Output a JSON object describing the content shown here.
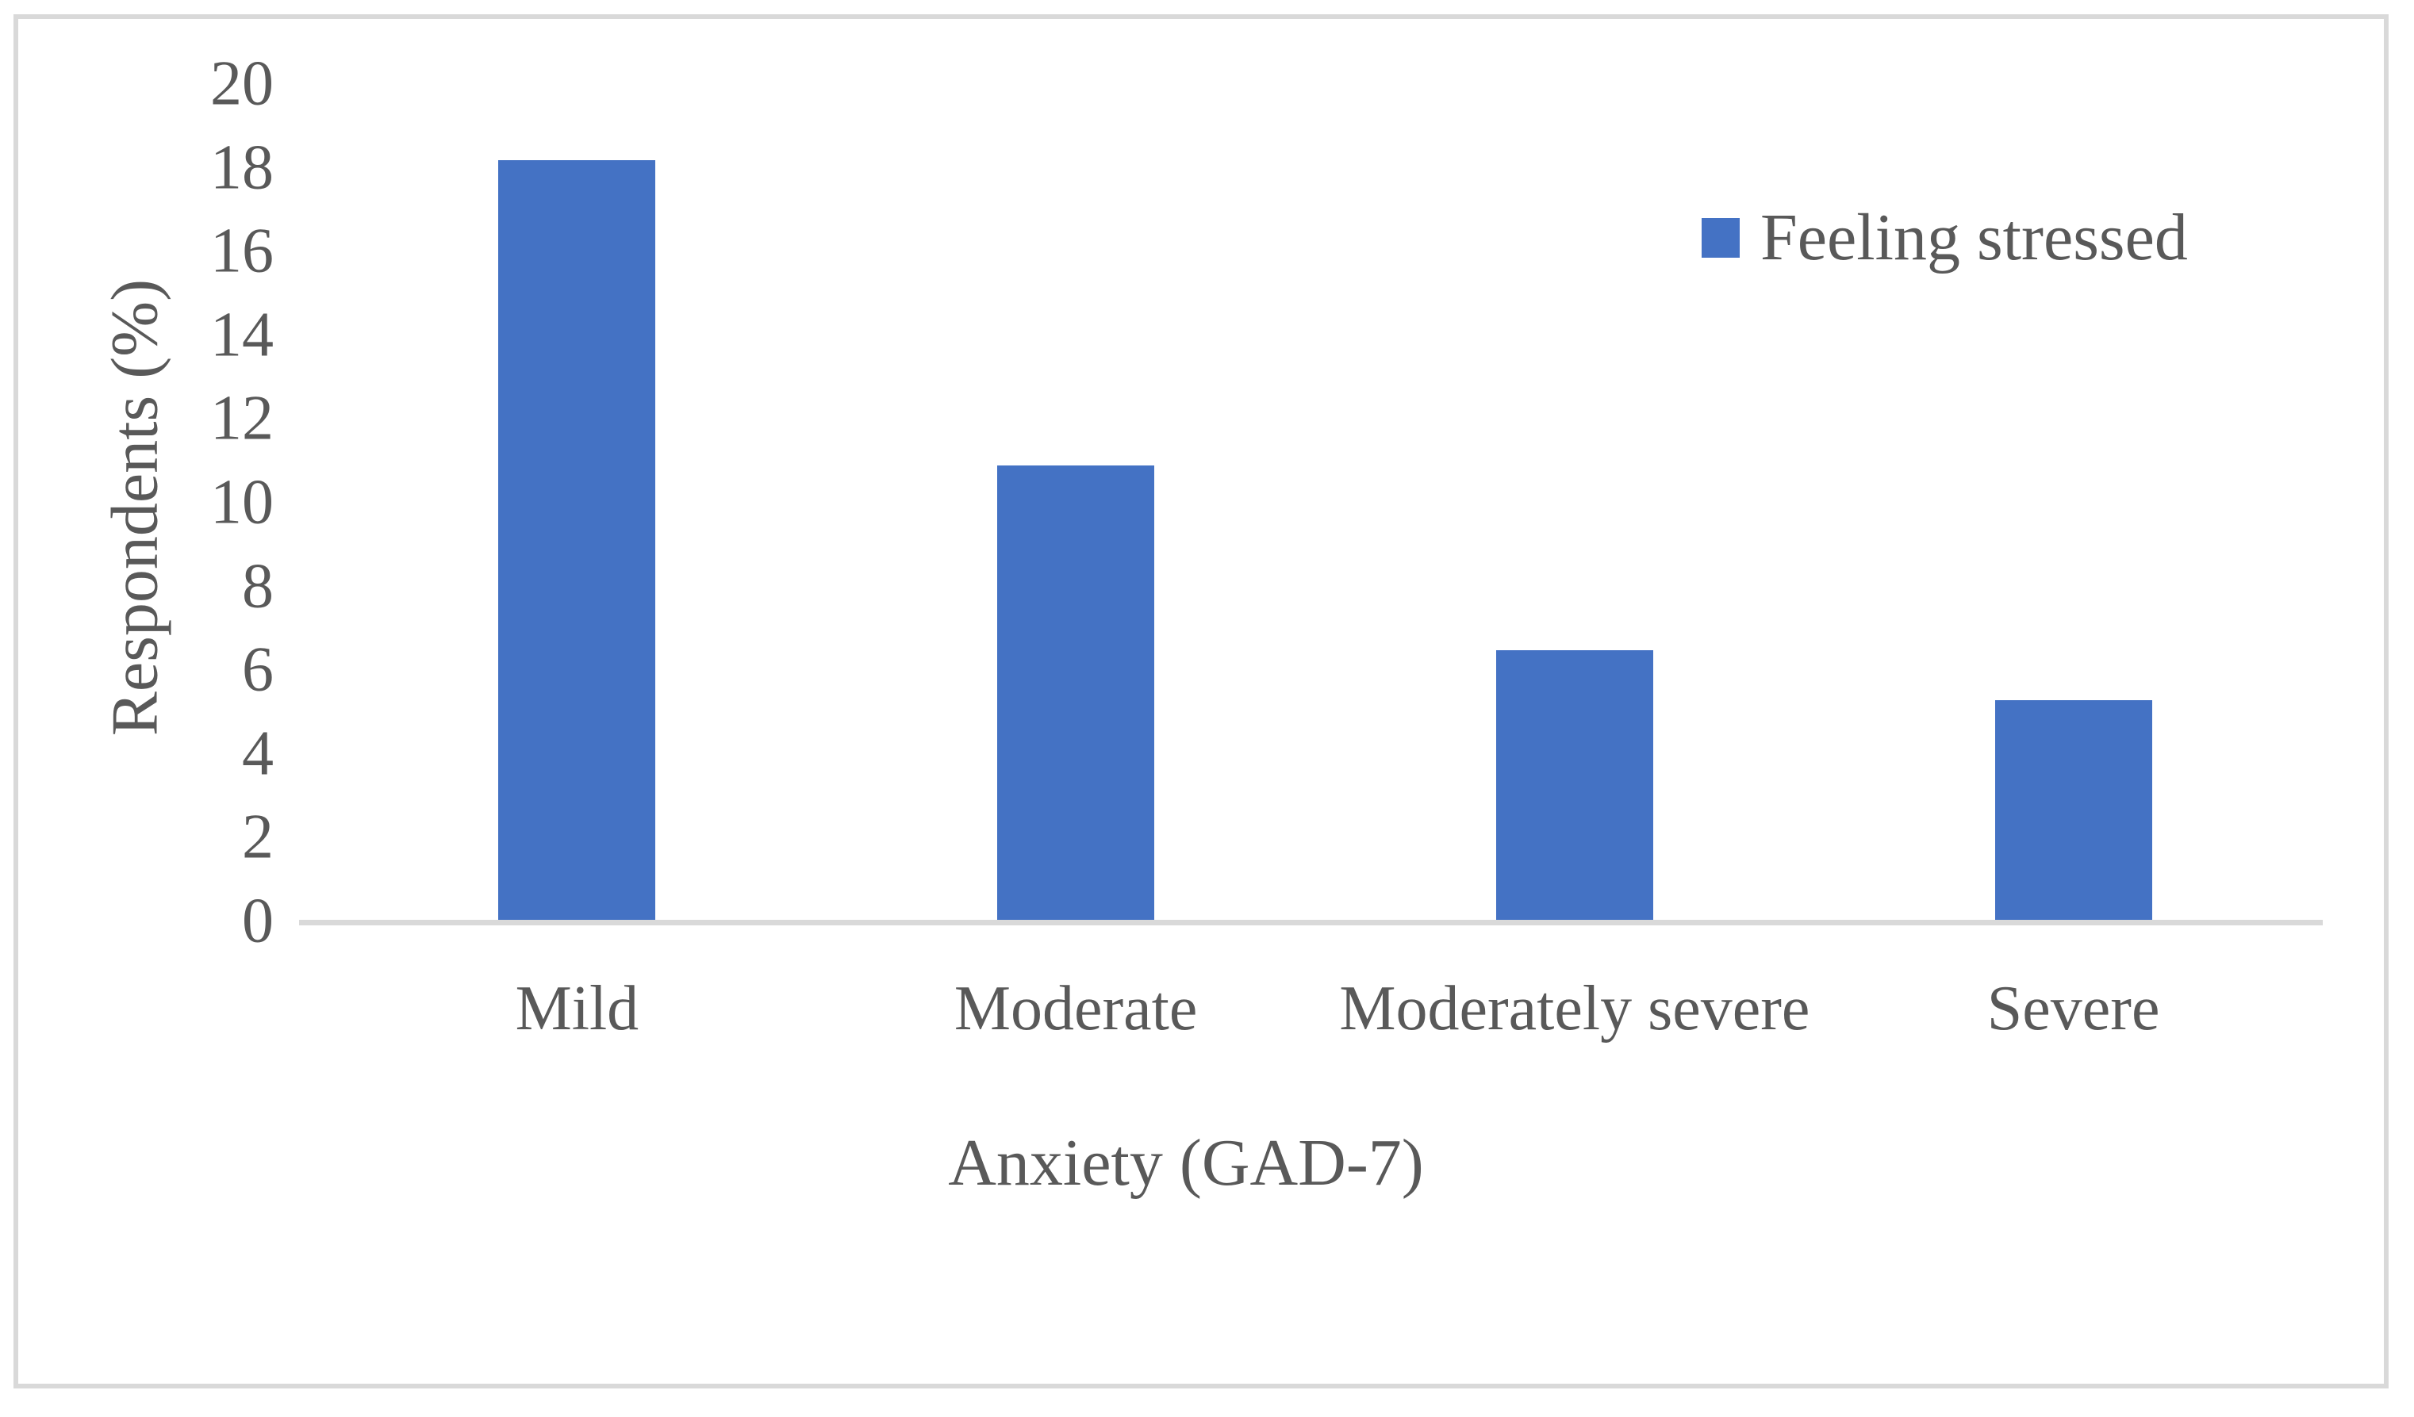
{
  "figure": {
    "background": "#FFFFFF",
    "border_color": "#D9D9D9",
    "text_color": "#595959",
    "axis_line_color": "#D9D9D9"
  },
  "chart_data": {
    "type": "bar",
    "title": "",
    "xlabel": "Anxiety (GAD-7)",
    "ylabel": "Respondents (%)",
    "categories": [
      "Mild",
      "Moderate",
      "Moderately severe",
      "Severe"
    ],
    "series": [
      {
        "name": "Feeling stressed",
        "values": [
          18.2,
          10.9,
          6.5,
          5.3
        ],
        "color": "#4472C4"
      }
    ],
    "ylim": [
      0,
      20
    ],
    "yticks": [
      0,
      2,
      4,
      6,
      8,
      10,
      12,
      14,
      16,
      18,
      20
    ],
    "grid": "off",
    "legend_position": "top-right"
  }
}
